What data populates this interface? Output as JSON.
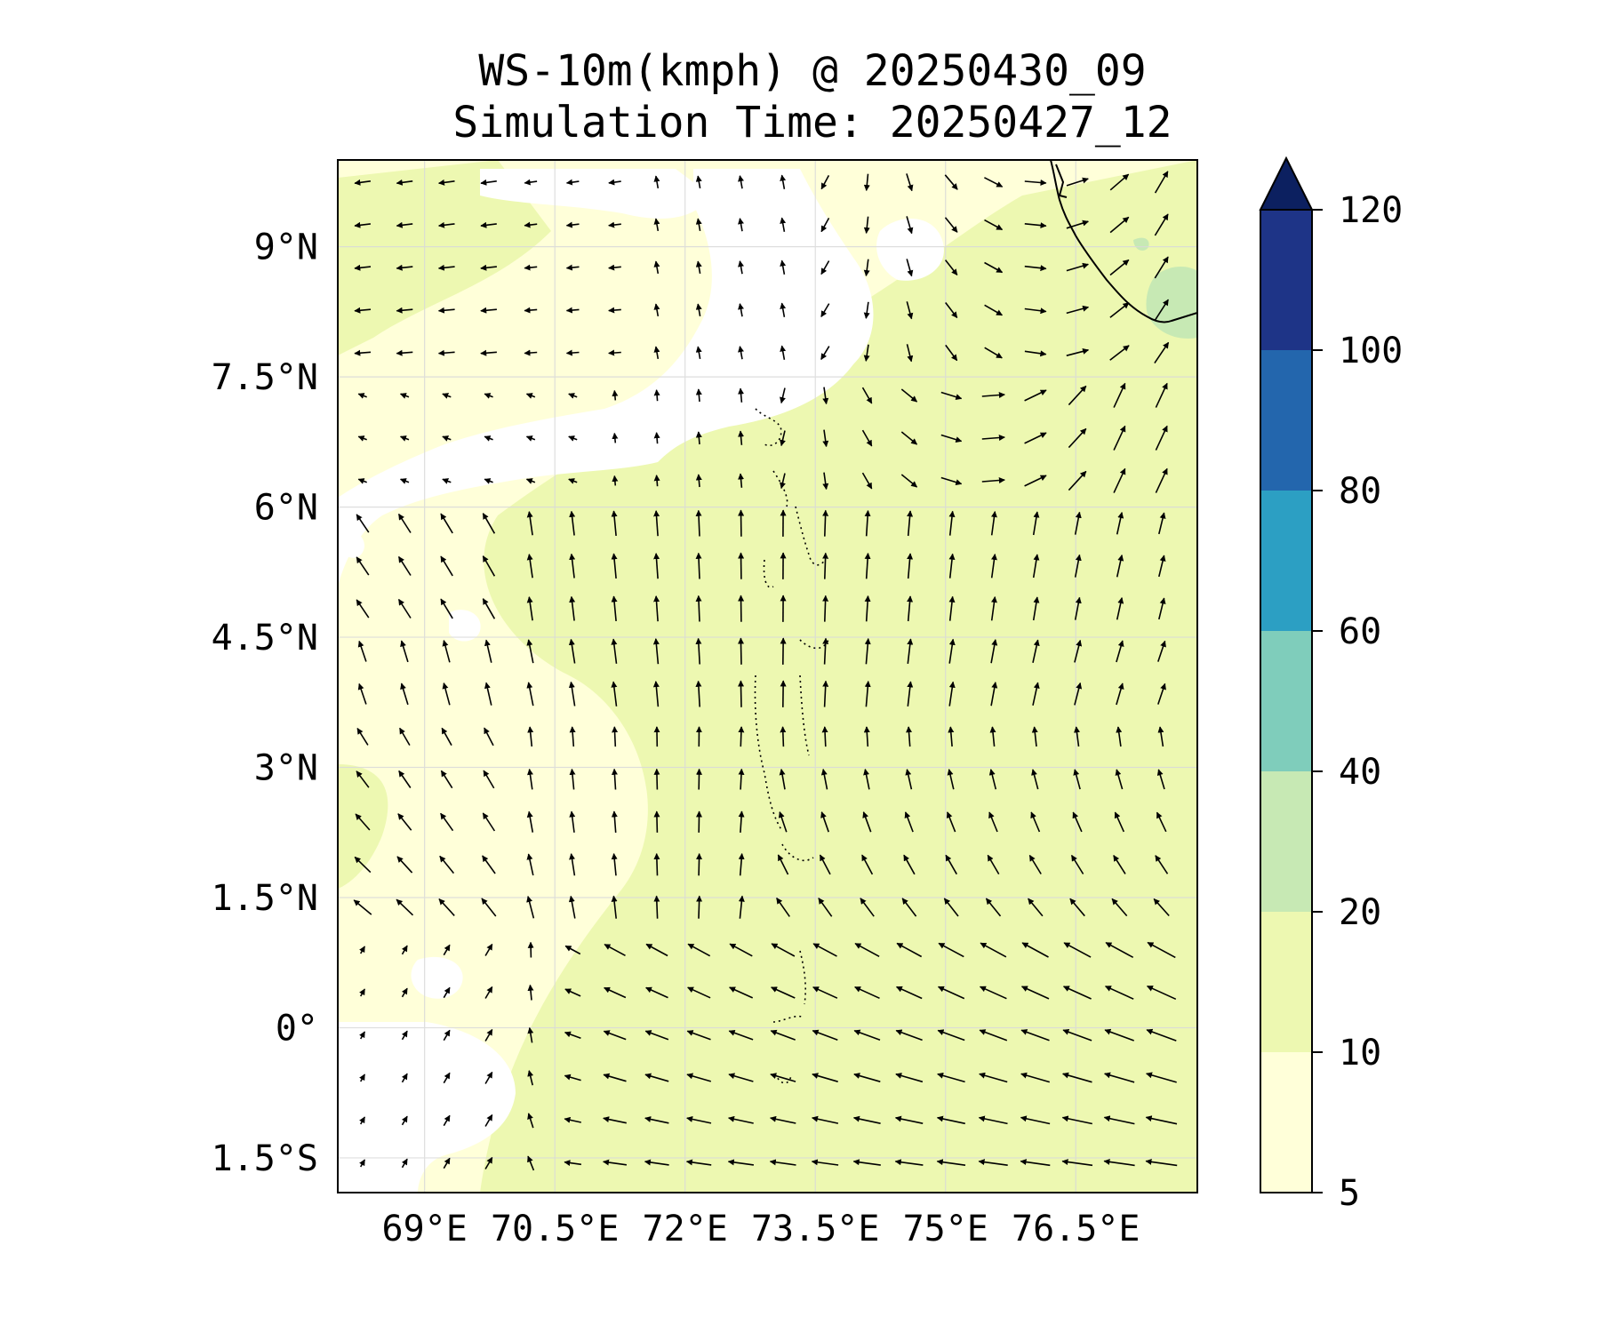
{
  "map": {
    "title": "WS-10m(kmph) @ 20250430_09",
    "subtitle": "Simulation Time: 20250427_12",
    "lat_ticks": [
      "9°N",
      "7.5°N",
      "6°N",
      "4.5°N",
      "3°N",
      "1.5°N",
      "0°",
      "1.5°S"
    ],
    "lon_ticks": [
      "69°E",
      "70.5°E",
      "72°E",
      "73.5°E",
      "75°E",
      "76.5°E"
    ],
    "extent": {
      "lon_min": 68.0,
      "lon_max": 77.9,
      "lat_min": -1.9,
      "lat_max": 10.0
    }
  },
  "colorbar": {
    "levels": [
      "5",
      "10",
      "20",
      "40",
      "60",
      "80",
      "100",
      "120"
    ],
    "colors": [
      "#ffffd9",
      "#edf8b1",
      "#c7e9b4",
      "#7fcdbb",
      "#2c9fc3",
      "#2366ad",
      "#1e3487",
      "#0c2060"
    ],
    "extend": "max"
  },
  "chart_data": {
    "type": "map",
    "variable": "WS-10m(kmph)",
    "grid": true,
    "field_description": "wind arrows: westward in the north-west, northward across central latitudes, north-eastward in the north-east, westward/north-westward in the south"
  }
}
